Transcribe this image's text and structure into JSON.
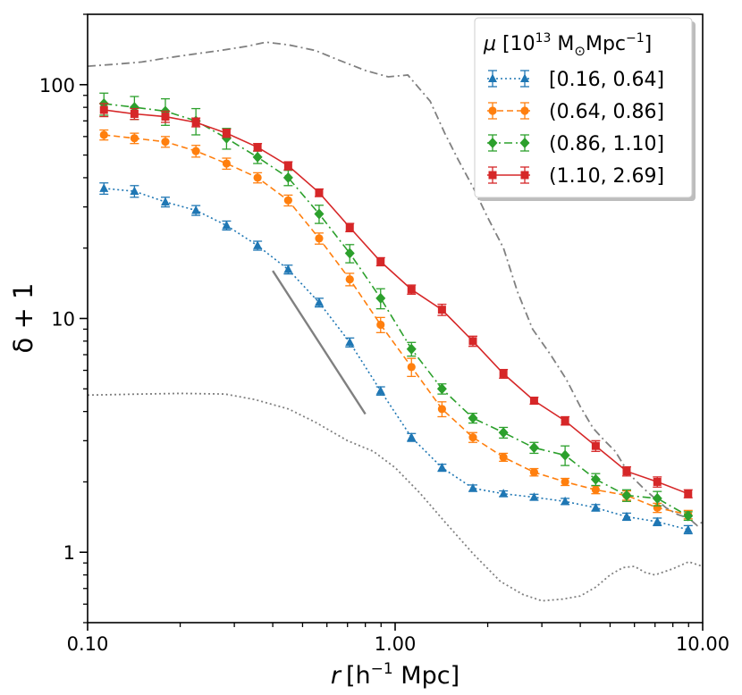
{
  "chart_data": {
    "type": "line",
    "xscale": "log",
    "yscale": "log",
    "xlim": [
      0.1,
      10.0
    ],
    "ylim": [
      0.5,
      200
    ],
    "xlabel_parts": {
      "r": "r",
      "unit": "[h",
      "exp": "−1",
      "tail": " Mpc]"
    },
    "ylabel": "δ + 1",
    "xticks": [
      {
        "value": 0.1,
        "label": "0.10"
      },
      {
        "value": 1.0,
        "label": "1.00"
      },
      {
        "value": 10.0,
        "label": "10.00"
      }
    ],
    "yticks": [
      {
        "value": 1,
        "label": "1"
      },
      {
        "value": 10,
        "label": "10"
      },
      {
        "value": 100,
        "label": "100"
      }
    ],
    "legend": {
      "title_parts": {
        "mu": "μ",
        "open": " [10",
        "exp": "13",
        "units": " M",
        "sun": "⊙",
        "mpc": "Mpc",
        "mexp": "−1",
        "close": "]"
      },
      "placement": "top-right"
    },
    "x": [
      0.113,
      0.142,
      0.179,
      0.225,
      0.283,
      0.357,
      0.449,
      0.566,
      0.712,
      0.897,
      1.13,
      1.42,
      1.79,
      2.25,
      2.83,
      3.57,
      4.49,
      5.66,
      7.12,
      8.97
    ],
    "series": [
      {
        "name": "[0.16, 0.64]",
        "color": "#1f77b4",
        "linestyle": "dotted",
        "marker": "triangle",
        "values": [
          36,
          35,
          31.5,
          29,
          25,
          20.5,
          16.2,
          11.7,
          7.9,
          4.9,
          3.1,
          2.3,
          1.88,
          1.78,
          1.72,
          1.65,
          1.55,
          1.42,
          1.35,
          1.25
        ],
        "errors": [
          2,
          2,
          1.5,
          1.4,
          1.1,
          0.9,
          0.7,
          0.5,
          0.35,
          0.2,
          0.12,
          0.08,
          0.06,
          0.05,
          0.05,
          0.05,
          0.05,
          0.05,
          0.05,
          0.05
        ]
      },
      {
        "name": "(0.64, 0.86]",
        "color": "#ff7f0e",
        "linestyle": "dashed",
        "marker": "circle",
        "values": [
          61,
          59,
          57,
          52,
          46,
          40,
          32,
          22,
          14.7,
          9.4,
          6.2,
          4.1,
          3.1,
          2.55,
          2.2,
          2.0,
          1.85,
          1.75,
          1.55,
          1.45
        ],
        "errors": [
          3,
          3,
          3,
          3,
          2.5,
          2,
          1.7,
          1.2,
          0.9,
          0.7,
          0.55,
          0.3,
          0.15,
          0.1,
          0.08,
          0.07,
          0.07,
          0.08,
          0.07,
          0.06
        ]
      },
      {
        "name": "(0.86, 1.10]",
        "color": "#2ca02c",
        "linestyle": "dashdot",
        "marker": "diamond",
        "values": [
          83,
          80,
          77,
          70,
          59,
          49,
          40,
          28,
          19,
          12.2,
          7.4,
          5.0,
          3.75,
          3.25,
          2.8,
          2.6,
          2.05,
          1.75,
          1.7,
          1.43
        ],
        "errors": [
          9,
          9,
          10,
          9,
          6,
          3,
          3,
          2.5,
          1.7,
          1.2,
          0.5,
          0.25,
          0.18,
          0.17,
          0.15,
          0.25,
          0.12,
          0.1,
          0.12,
          0.06
        ]
      },
      {
        "name": "(1.10, 2.69]",
        "color": "#d62728",
        "linestyle": "solid",
        "marker": "square",
        "values": [
          78,
          75,
          73,
          69,
          62,
          54,
          45,
          34.5,
          24.5,
          17.5,
          13.3,
          10.9,
          8,
          5.8,
          4.45,
          3.65,
          2.85,
          2.22,
          2.0,
          1.78
        ],
        "errors": [
          5,
          4,
          4,
          3,
          2.5,
          2,
          1.8,
          1.3,
          1.0,
          0.7,
          0.6,
          0.6,
          0.4,
          0.25,
          0.15,
          0.15,
          0.15,
          0.1,
          0.1,
          0.07
        ]
      }
    ],
    "reference_lines": [
      {
        "name": "upper-envelope",
        "color": "#808080",
        "linestyle": "dashdot",
        "x": [
          0.1,
          0.12,
          0.15,
          0.18,
          0.22,
          0.27,
          0.33,
          0.38,
          0.45,
          0.55,
          0.65,
          0.8,
          0.95,
          1.1,
          1.3,
          1.45,
          1.6,
          1.8,
          2.0,
          2.25,
          2.5,
          2.8,
          3.2,
          3.6,
          4.0,
          4.4,
          4.8,
          5.2,
          5.6,
          6.0,
          6.5,
          7.0,
          7.6,
          8.3,
          9.0,
          9.6,
          10.0
        ],
        "values": [
          120,
          122,
          125,
          130,
          135,
          140,
          146,
          152,
          148,
          140,
          128,
          115,
          108,
          110,
          85,
          62,
          48,
          36,
          27,
          20,
          13,
          9,
          7,
          5.5,
          4.2,
          3.4,
          3.0,
          2.7,
          2.3,
          2.05,
          1.85,
          1.7,
          1.55,
          1.45,
          1.4,
          1.3,
          1.35
        ]
      },
      {
        "name": "lower-envelope",
        "color": "#808080",
        "linestyle": "dotted",
        "x": [
          0.1,
          0.15,
          0.2,
          0.28,
          0.35,
          0.45,
          0.55,
          0.7,
          0.85,
          1.0,
          1.2,
          1.45,
          1.8,
          2.2,
          2.6,
          3.0,
          3.5,
          4.0,
          4.5,
          5.0,
          5.5,
          6.0,
          6.5,
          7.0,
          8.0,
          9.0,
          10.0
        ],
        "values": [
          4.7,
          4.75,
          4.78,
          4.75,
          4.5,
          4.1,
          3.6,
          3.0,
          2.7,
          2.3,
          1.8,
          1.35,
          0.98,
          0.75,
          0.66,
          0.62,
          0.63,
          0.65,
          0.71,
          0.8,
          0.86,
          0.87,
          0.82,
          0.8,
          0.85,
          0.91,
          0.87
        ]
      },
      {
        "name": "power-law-guide",
        "color": "#808080",
        "linestyle": "solid",
        "x": [
          0.4,
          0.8
        ],
        "values": [
          16,
          3.9
        ]
      }
    ]
  }
}
